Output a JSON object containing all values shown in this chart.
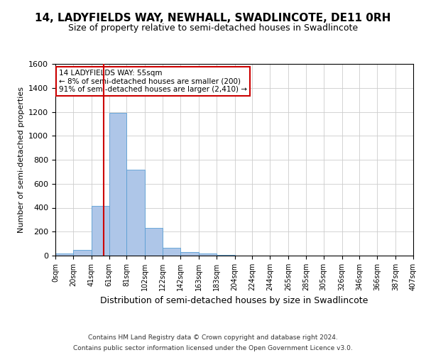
{
  "title": "14, LADYFIELDS WAY, NEWHALL, SWADLINCOTE, DE11 0RH",
  "subtitle": "Size of property relative to semi-detached houses in Swadlincote",
  "xlabel": "Distribution of semi-detached houses by size in Swadlincote",
  "ylabel": "Number of semi-detached properties",
  "footer1": "Contains HM Land Registry data © Crown copyright and database right 2024.",
  "footer2": "Contains public sector information licensed under the Open Government Licence v3.0.",
  "bin_labels": [
    "0sqm",
    "20sqm",
    "41sqm",
    "61sqm",
    "81sqm",
    "102sqm",
    "122sqm",
    "142sqm",
    "163sqm",
    "183sqm",
    "204sqm",
    "224sqm",
    "244sqm",
    "265sqm",
    "285sqm",
    "305sqm",
    "326sqm",
    "346sqm",
    "366sqm",
    "387sqm",
    "407sqm"
  ],
  "bar_heights": [
    15,
    50,
    415,
    1190,
    715,
    230,
    65,
    30,
    15,
    5,
    0,
    0,
    0,
    0,
    0,
    0,
    0,
    0,
    0,
    0
  ],
  "bar_color": "#aec6e8",
  "bar_edge_color": "#5a9fd4",
  "ylim": [
    0,
    1600
  ],
  "yticks": [
    0,
    200,
    400,
    600,
    800,
    1000,
    1200,
    1400,
    1600
  ],
  "property_line_x": 55,
  "red_line_color": "#cc0000",
  "annotation_text1": "14 LADYFIELDS WAY: 55sqm",
  "annotation_text2": "← 8% of semi-detached houses are smaller (200)",
  "annotation_text3": "91% of semi-detached houses are larger (2,410) →",
  "annotation_box_color": "#ffffff",
  "annotation_border_color": "#cc0000",
  "bg_color": "#ffffff",
  "grid_color": "#cccccc"
}
